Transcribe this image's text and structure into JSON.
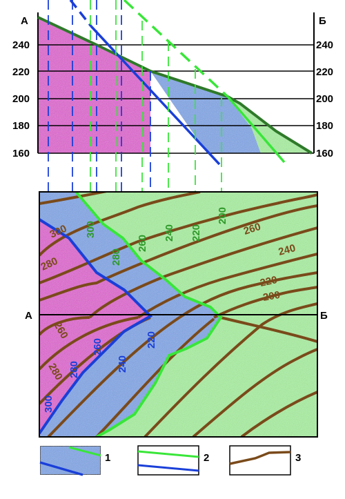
{
  "section": {
    "left_label": "А",
    "right_label": "Б",
    "elevations": [
      "240",
      "220",
      "200",
      "180",
      "160"
    ]
  },
  "map": {
    "left_label": "А",
    "right_label": "Б",
    "contours": [
      "300",
      "280",
      "260",
      "240",
      "220",
      "200"
    ],
    "lower_surface_labels": [
      "300",
      "280",
      "260",
      "240",
      "220"
    ],
    "upper_surface_labels": [
      "300",
      "280",
      "260",
      "240",
      "220",
      "200"
    ]
  },
  "legend": {
    "items": [
      {
        "number": "1"
      },
      {
        "number": "2"
      },
      {
        "number": "3"
      }
    ]
  },
  "colors": {
    "pink": "#e05fd0",
    "blue": "#7fa6e8",
    "green": "#a8f0a0",
    "blue_line": "#1a3fd8",
    "green_line": "#39e639",
    "dark_green": "#2f7a2a",
    "brown": "#7a4a1a"
  }
}
